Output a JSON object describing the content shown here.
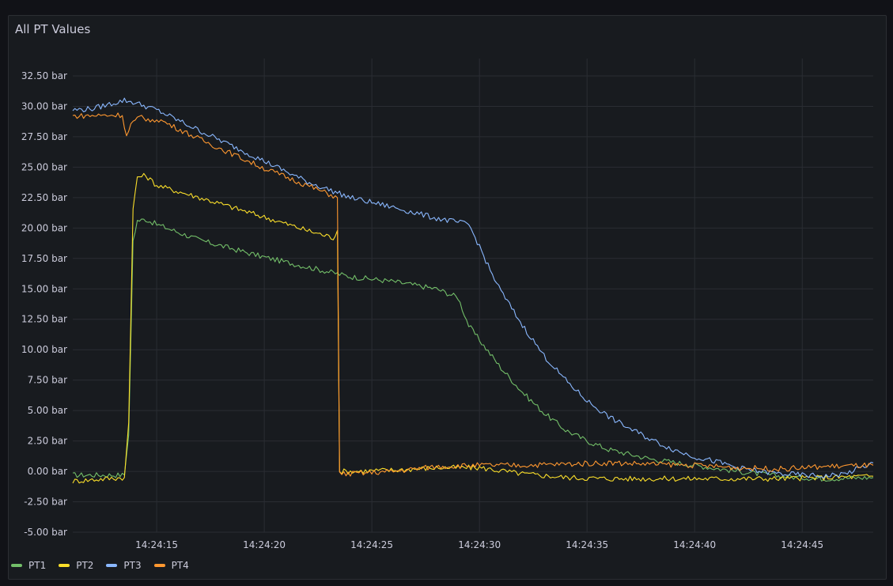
{
  "panel": {
    "title": "All PT Values"
  },
  "chart_data": {
    "type": "line",
    "title": "All PT Values",
    "x_unit": "time (HH:MM:SS)",
    "x_range": [
      "14:24:11.1",
      "14:24:48.3"
    ],
    "x_ticks": [
      "14:24:15",
      "14:24:20",
      "14:24:25",
      "14:24:30",
      "14:24:35",
      "14:24:40",
      "14:24:45"
    ],
    "y_range": [
      -5,
      32.5
    ],
    "y_unit": "bar",
    "y_ticks": [
      "32.50 bar",
      "30.00 bar",
      "27.50 bar",
      "25.00 bar",
      "22.50 bar",
      "20.00 bar",
      "17.50 bar",
      "15.00 bar",
      "12.50 bar",
      "10.00 bar",
      "7.50 bar",
      "5.00 bar",
      "2.50 bar",
      "0.00 bar",
      "-2.50 bar",
      "-5.00 bar"
    ],
    "grid": true,
    "legend_position": "bottom-left",
    "series": [
      {
        "name": "PT1",
        "color": "#73bf69",
        "x": [
          "14:24:11.1",
          "14:24:13.5",
          "14:24:13.7",
          "14:24:13.9",
          "14:24:14.1",
          "14:24:14.5",
          "14:24:15.0",
          "14:24:17.0",
          "14:24:20.0",
          "14:24:22.0",
          "14:24:24.0",
          "14:24:26.0",
          "14:24:28.0",
          "14:24:29.0",
          "14:24:29.5",
          "14:24:30.0",
          "14:24:31.0",
          "14:24:32.0",
          "14:24:33.0",
          "14:24:34.0",
          "14:24:35.0",
          "14:24:36.0",
          "14:24:38.0",
          "14:24:40.0",
          "14:24:42.0",
          "14:24:44.0",
          "14:24:46.0",
          "14:24:48.3"
        ],
        "y": [
          -0.3,
          -0.3,
          3.0,
          19.0,
          20.6,
          20.7,
          20.3,
          19.0,
          17.6,
          16.8,
          16.0,
          15.6,
          15.0,
          14.3,
          12.0,
          10.8,
          8.5,
          6.5,
          4.8,
          3.4,
          2.5,
          1.8,
          1.0,
          0.5,
          0.0,
          -0.4,
          -0.6,
          -0.5
        ]
      },
      {
        "name": "PT2",
        "color": "#fade2a",
        "x": [
          "14:24:11.1",
          "14:24:13.5",
          "14:24:13.7",
          "14:24:13.9",
          "14:24:14.1",
          "14:24:14.5",
          "14:24:15.0",
          "14:24:17.0",
          "14:24:20.0",
          "14:24:22.0",
          "14:24:23.2",
          "14:24:23.4",
          "14:24:23.5",
          "14:24:24.0",
          "14:24:26.0",
          "14:24:28.0",
          "14:24:30.0",
          "14:24:32.0",
          "14:24:34.0",
          "14:24:36.0",
          "14:24:40.0",
          "14:24:44.0",
          "14:24:48.3"
        ],
        "y": [
          -0.8,
          -0.5,
          4.0,
          21.5,
          24.2,
          24.3,
          23.5,
          22.5,
          20.9,
          19.8,
          19.2,
          19.8,
          0.0,
          0.0,
          0.1,
          0.3,
          0.3,
          -0.2,
          -0.5,
          -0.6,
          -0.6,
          -0.6,
          -0.4
        ]
      },
      {
        "name": "PT3",
        "color": "#8ab8ff",
        "x": [
          "14:24:11.1",
          "14:24:12.0",
          "14:24:13.5",
          "14:24:14.0",
          "14:24:15.0",
          "14:24:17.0",
          "14:24:20.0",
          "14:24:22.0",
          "14:24:24.0",
          "14:24:26.0",
          "14:24:28.0",
          "14:24:29.5",
          "14:24:30.0",
          "14:24:30.5",
          "14:24:31.0",
          "14:24:32.0",
          "14:24:33.0",
          "14:24:34.0",
          "14:24:35.0",
          "14:24:36.0",
          "14:24:37.0",
          "14:24:38.0",
          "14:24:39.0",
          "14:24:40.0",
          "14:24:41.0",
          "14:24:42.0",
          "14:24:43.0",
          "14:24:44.0",
          "14:24:45.0",
          "14:24:46.0",
          "14:24:47.0",
          "14:24:48.3"
        ],
        "y": [
          29.7,
          29.8,
          30.5,
          30.3,
          29.7,
          28.0,
          25.5,
          23.8,
          22.5,
          21.7,
          20.8,
          20.3,
          18.5,
          16.5,
          14.8,
          12.0,
          9.5,
          7.5,
          5.8,
          4.5,
          3.5,
          2.6,
          1.8,
          1.2,
          0.8,
          0.3,
          0.0,
          -0.2,
          -0.3,
          -0.4,
          -0.2,
          0.7
        ]
      },
      {
        "name": "PT4",
        "color": "#ff9830",
        "x": [
          "14:24:11.1",
          "14:24:13.4",
          "14:24:13.6",
          "14:24:13.8",
          "14:24:14.3",
          "14:24:14.8",
          "14:24:15.0",
          "14:24:17.0",
          "14:24:20.0",
          "14:24:22.0",
          "14:24:23.4",
          "14:24:23.5",
          "14:24:24.0",
          "14:24:26.0",
          "14:24:28.0",
          "14:24:30.0",
          "14:24:32.0",
          "14:24:34.0",
          "14:24:36.0",
          "14:24:38.0",
          "14:24:40.0",
          "14:24:42.0",
          "14:24:44.0",
          "14:24:46.0",
          "14:24:48.3"
        ],
        "y": [
          29.2,
          29.3,
          27.5,
          28.5,
          29.2,
          28.7,
          29.0,
          27.3,
          24.9,
          23.5,
          22.5,
          -0.2,
          -0.2,
          0.0,
          0.4,
          0.5,
          0.5,
          0.6,
          0.7,
          0.6,
          0.5,
          0.3,
          0.2,
          0.4,
          0.5
        ]
      }
    ]
  }
}
